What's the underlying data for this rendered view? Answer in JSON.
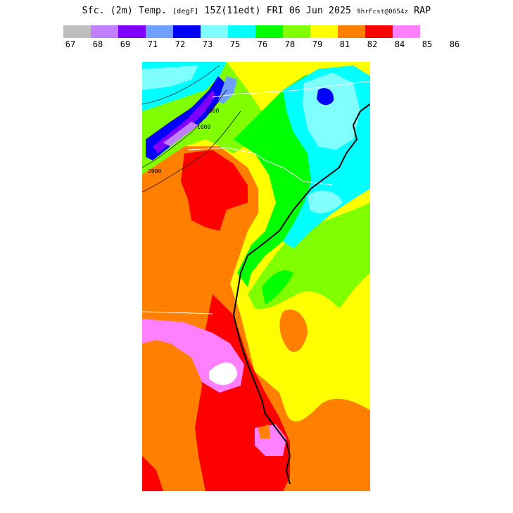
{
  "title": {
    "main": "Sfc. (2m) Temp.",
    "units": "[degF]",
    "valid": "15Z(11edt) FRI 06 Jun 2025",
    "forecast": "9hrFcst@0654z",
    "model": "RAP"
  },
  "legend": {
    "colors": [
      "#bebebe",
      "#c080ff",
      "#8000ff",
      "#6f9fff",
      "#0000ff",
      "#80ffff",
      "#00ffff",
      "#00ff00",
      "#80ff00",
      "#ffff00",
      "#ff8000",
      "#ff0000",
      "#ff80ff"
    ],
    "ticks": [
      "67",
      "68",
      "69",
      "71",
      "72",
      "73",
      "75",
      "76",
      "78",
      "79",
      "81",
      "82",
      "84",
      "85",
      "86"
    ]
  },
  "map": {
    "contour_labels": [
      "1000",
      "2000",
      "2000"
    ]
  }
}
